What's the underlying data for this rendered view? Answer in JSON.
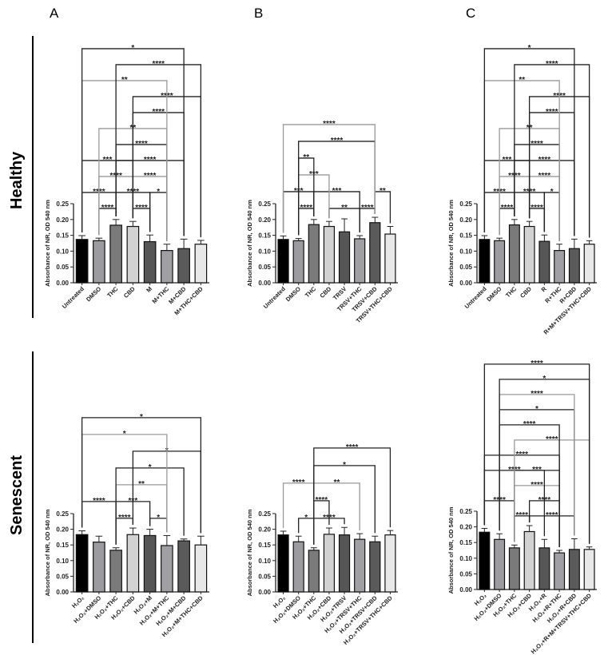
{
  "panel_letters": [
    "A",
    "B",
    "C"
  ],
  "row_labels": [
    "Healthy",
    "Senescent"
  ],
  "bar_colors": [
    "#000000",
    "#9b9ba0",
    "#7a7a7a",
    "#d2d2d2",
    "#565656",
    "#a0a0a4",
    "#5a5a5a",
    "#e8e8e8"
  ],
  "chart_data": [
    {
      "type": "bar",
      "panel": "A",
      "group": "Healthy",
      "ylabel": "Absorbance of NR, OD 540 nm",
      "ylim": [
        0,
        0.25
      ],
      "yticks": [
        "0.00",
        "0.05",
        "0.10",
        "0.15",
        "0.20",
        "0.25"
      ],
      "categories": [
        "Untreated",
        "DMSO",
        "THC",
        "CBD",
        "M",
        "M+THC",
        "M+CBD",
        "M+THC+CBD"
      ],
      "values": [
        0.137,
        0.133,
        0.182,
        0.178,
        0.13,
        0.102,
        0.108,
        0.122
      ],
      "errors": [
        0.012,
        0.008,
        0.018,
        0.016,
        0.021,
        0.02,
        0.03,
        0.012
      ],
      "comparisons": [
        [
          [
            1,
            2,
            "****"
          ],
          [
            3,
            4,
            "****"
          ]
        ],
        [
          [
            0,
            2,
            "****"
          ],
          [
            2,
            4,
            "****"
          ],
          [
            4,
            5,
            "*"
          ]
        ],
        [
          [
            1,
            3,
            "****"
          ],
          [
            3,
            5,
            "****"
          ]
        ],
        [
          [
            0,
            3,
            "***"
          ],
          [
            2,
            6,
            "****"
          ]
        ],
        [
          [
            2,
            5,
            "****"
          ]
        ],
        [
          [
            1,
            5,
            "**"
          ]
        ],
        [
          [
            3,
            6,
            "****"
          ]
        ],
        [
          [
            3,
            7,
            "****"
          ]
        ],
        [
          [
            0,
            5,
            "**"
          ]
        ],
        [
          [
            2,
            7,
            "****"
          ]
        ],
        [
          [
            0,
            6,
            "*"
          ]
        ]
      ]
    },
    {
      "type": "bar",
      "panel": "B",
      "group": "Healthy",
      "ylabel": "Absorbance of NR, OD 540 nm",
      "ylim": [
        0,
        0.25
      ],
      "yticks": [
        "0.00",
        "0.05",
        "0.10",
        "0.15",
        "0.20",
        "0.25"
      ],
      "categories": [
        "Untreated",
        "DMSO",
        "THC",
        "CBD",
        "TRSV",
        "TRSV+THC",
        "TRSV+CBD",
        "TRSV+THC+CBD"
      ],
      "values": [
        0.137,
        0.133,
        0.184,
        0.178,
        0.161,
        0.139,
        0.19,
        0.154
      ],
      "errors": [
        0.011,
        0.007,
        0.016,
        0.016,
        0.041,
        0.01,
        0.017,
        0.024
      ],
      "comparisons": [
        [
          [
            1,
            2,
            "****"
          ],
          [
            3,
            5,
            "**"
          ],
          [
            5,
            6,
            "****"
          ]
        ],
        [
          [
            0,
            2,
            "***"
          ],
          [
            2,
            5,
            "***"
          ],
          [
            6,
            7,
            "**"
          ]
        ],
        [
          [
            1,
            3,
            "***"
          ]
        ],
        [
          [
            1,
            2,
            "**"
          ]
        ],
        [
          [
            1,
            6,
            "****"
          ]
        ],
        [
          [
            0,
            6,
            "****"
          ]
        ]
      ]
    },
    {
      "type": "bar",
      "panel": "C",
      "group": "Healthy",
      "ylabel": "Absorbance of NR, OD 540 nm",
      "ylim": [
        0,
        0.25
      ],
      "yticks": [
        "0.00",
        "0.05",
        "0.10",
        "0.15",
        "0.20",
        "0.25"
      ],
      "categories": [
        "Untreated",
        "DMSO",
        "THC",
        "CBD",
        "R",
        "R+THC",
        "R+CBD",
        "R+M+TRSV+THC+CBD"
      ],
      "values": [
        0.137,
        0.133,
        0.183,
        0.178,
        0.131,
        0.102,
        0.108,
        0.122
      ],
      "errors": [
        0.012,
        0.008,
        0.017,
        0.016,
        0.02,
        0.02,
        0.03,
        0.011
      ],
      "comparisons": [
        [
          [
            1,
            2,
            "****"
          ],
          [
            3,
            4,
            "****"
          ]
        ],
        [
          [
            0,
            2,
            "****"
          ],
          [
            2,
            4,
            "****"
          ],
          [
            4,
            5,
            "*"
          ]
        ],
        [
          [
            1,
            3,
            "****"
          ],
          [
            3,
            5,
            "****"
          ]
        ],
        [
          [
            0,
            3,
            "***"
          ],
          [
            2,
            6,
            "****"
          ]
        ],
        [
          [
            2,
            5,
            "****"
          ]
        ],
        [
          [
            1,
            5,
            "**"
          ]
        ],
        [
          [
            3,
            6,
            "****"
          ]
        ],
        [
          [
            3,
            7,
            "****"
          ]
        ],
        [
          [
            0,
            5,
            "**"
          ]
        ],
        [
          [
            2,
            7,
            "****"
          ]
        ],
        [
          [
            0,
            6,
            "*"
          ]
        ]
      ]
    },
    {
      "type": "bar",
      "panel": "A",
      "group": "Senescent",
      "ylabel": "Absorbance of NR, OD 540 nm",
      "ylim": [
        0,
        0.25
      ],
      "yticks": [
        "0.00",
        "0.05",
        "0.10",
        "0.15",
        "0.20",
        "0.25"
      ],
      "categories": [
        "H₂O₂",
        "H₂O₂+DMSO",
        "H₂O₂+THC",
        "H₂O₂+CBD",
        "H₂O₂+M",
        "H₂O₂+M+THC",
        "H₂O₂+M+CBD",
        "H₂O₂+M+THC+CBD"
      ],
      "values": [
        0.183,
        0.159,
        0.133,
        0.183,
        0.18,
        0.148,
        0.163,
        0.15
      ],
      "errors": [
        0.012,
        0.019,
        0.008,
        0.021,
        0.02,
        0.032,
        0.006,
        0.028
      ],
      "comparisons": [
        [
          [
            2,
            3,
            "****"
          ],
          [
            4,
            5,
            "*"
          ]
        ],
        [
          [
            0,
            2,
            "****"
          ],
          [
            2,
            4,
            "***"
          ]
        ],
        [
          [
            2,
            5,
            "**"
          ]
        ],
        [
          [
            2,
            6,
            "*"
          ]
        ],
        [
          [
            3,
            7,
            "*"
          ]
        ],
        [
          [
            0,
            5,
            "*"
          ]
        ],
        [
          [
            0,
            7,
            "*"
          ]
        ]
      ]
    },
    {
      "type": "bar",
      "panel": "B",
      "group": "Senescent",
      "ylabel": "Absorbance of NR, OD 540 nm",
      "ylim": [
        0,
        0.25
      ],
      "yticks": [
        "0.00",
        "0.05",
        "0.10",
        "0.15",
        "0.20",
        "0.25"
      ],
      "categories": [
        "H₂O₂",
        "H₂O₂+DMSO",
        "H₂O₂+THC",
        "H₂O₂+CBD",
        "H₂O₂+TRSV",
        "H₂O₂+TRSV+THC",
        "H₂O₂+TRSV+CBD",
        "H₂O₂+TRSV+THC+CBD"
      ],
      "values": [
        0.182,
        0.16,
        0.133,
        0.184,
        0.182,
        0.168,
        0.16,
        0.182
      ],
      "errors": [
        0.012,
        0.018,
        0.008,
        0.02,
        0.024,
        0.018,
        0.018,
        0.014
      ],
      "comparisons": [
        [
          [
            1,
            2,
            "*"
          ],
          [
            2,
            4,
            "****"
          ]
        ],
        [
          [
            2,
            3,
            "****"
          ]
        ],
        [
          [
            0,
            2,
            "****"
          ],
          [
            2,
            5,
            "**"
          ]
        ],
        [
          [
            2,
            6,
            "*"
          ]
        ],
        [
          [
            2,
            7,
            "****"
          ]
        ]
      ]
    },
    {
      "type": "bar",
      "panel": "C",
      "group": "Senescent",
      "ylabel": "Absorbance of NR, OD 540 nm",
      "ylim": [
        0,
        0.25
      ],
      "yticks": [
        "0.00",
        "0.05",
        "0.10",
        "0.15",
        "0.20",
        "0.25"
      ],
      "categories": [
        "H₂O₂",
        "H₂O₂+DMSO",
        "H₂O₂+THC",
        "H₂O₂+CBD",
        "H₂O₂+R",
        "H₂O₂+R+THC",
        "H₂O₂+R+CBD",
        "H₂O₂+R+M+TRSV+THC+CBD"
      ],
      "values": [
        0.183,
        0.16,
        0.133,
        0.185,
        0.133,
        0.117,
        0.128,
        0.128
      ],
      "errors": [
        0.012,
        0.018,
        0.009,
        0.019,
        0.027,
        0.008,
        0.034,
        0.008
      ],
      "comparisons": [
        [
          [
            2,
            3,
            "****"
          ],
          [
            3,
            6,
            "****"
          ]
        ],
        [
          [
            0,
            2,
            "****"
          ],
          [
            3,
            5,
            "****"
          ]
        ],
        [
          [
            2,
            5,
            "****"
          ]
        ],
        [
          [
            0,
            4,
            "****"
          ],
          [
            2,
            5,
            "***"
          ]
        ],
        [
          [
            0,
            5,
            "****"
          ]
        ],
        [
          [
            2,
            7,
            "****"
          ]
        ],
        [
          [
            1,
            5,
            "****"
          ]
        ],
        [
          [
            1,
            6,
            "*"
          ]
        ],
        [
          [
            1,
            6,
            "****"
          ]
        ],
        [
          [
            1,
            7,
            "*"
          ]
        ],
        [
          [
            0,
            7,
            "****"
          ]
        ]
      ]
    }
  ]
}
